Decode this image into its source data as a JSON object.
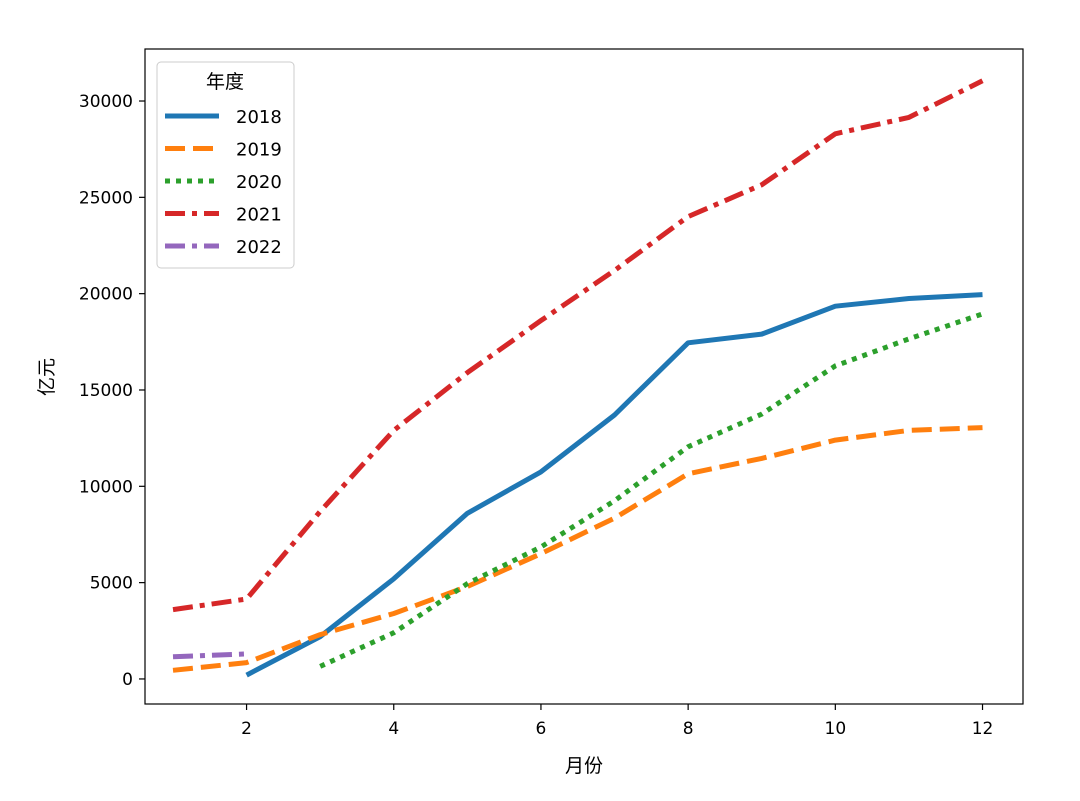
{
  "chart_data": {
    "type": "line",
    "xlabel": "月份",
    "ylabel": "亿元",
    "xlim": [
      0.62,
      12.55
    ],
    "ylim": [
      -1300,
      32700
    ],
    "xticks": [
      2,
      4,
      6,
      8,
      10,
      12
    ],
    "yticks": [
      0,
      5000,
      10000,
      15000,
      20000,
      25000,
      30000
    ],
    "grid": false,
    "legend": {
      "title": "年度",
      "position": "top-left"
    },
    "series": [
      {
        "name": "2018",
        "color": "#1f77b4",
        "style": "solid",
        "x": [
          2,
          3,
          4,
          5,
          6,
          7,
          8,
          9,
          10,
          11,
          12
        ],
        "y": [
          200,
          2200,
          5200,
          8600,
          10750,
          13700,
          17450,
          17900,
          19350,
          19750,
          19950
        ]
      },
      {
        "name": "2019",
        "color": "#ff7f0e",
        "style": "dashed",
        "x": [
          1,
          2,
          3,
          4,
          5,
          6,
          7,
          8,
          9,
          10,
          11,
          12
        ],
        "y": [
          450,
          850,
          2300,
          3400,
          4800,
          6500,
          8350,
          10650,
          11450,
          12400,
          12900,
          13050
        ]
      },
      {
        "name": "2020",
        "color": "#2ca02c",
        "style": "dotted",
        "x": [
          3,
          4,
          5,
          6,
          7,
          8,
          9,
          10,
          11,
          12
        ],
        "y": [
          650,
          2400,
          4950,
          6850,
          9250,
          12050,
          13750,
          16250,
          17650,
          18950
        ]
      },
      {
        "name": "2021",
        "color": "#d62728",
        "style": "dashdot",
        "x": [
          1,
          2,
          3,
          4,
          5,
          6,
          7,
          8,
          9,
          10,
          11,
          12
        ],
        "y": [
          3600,
          4150,
          8700,
          12900,
          15900,
          18600,
          21200,
          24000,
          25650,
          28300,
          29150,
          31050
        ]
      },
      {
        "name": "2022",
        "color": "#9467bd",
        "style": "dashdot",
        "x": [
          1,
          2
        ],
        "y": [
          1150,
          1300
        ]
      }
    ]
  }
}
